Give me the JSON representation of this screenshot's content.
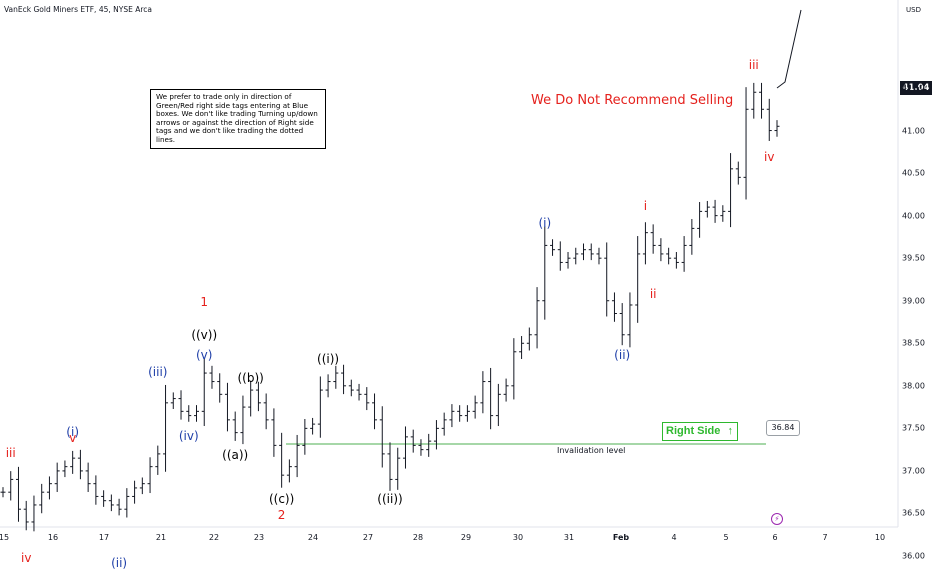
{
  "header": {
    "title": "VanEck Gold Miners ETF, 45, NYSE Arca",
    "currency": "USD"
  },
  "note": {
    "text": "We prefer to trade only in direction of Green/Red right side tags entering at Blue boxes. We don't like trading Turning up/down arrows or against the direction of Right side tags and we don't like trading the dotted lines."
  },
  "recommendation": "We Do Not Recommend Selling",
  "right_side": {
    "label": "Right Side",
    "arrow": "↑"
  },
  "invalidation": {
    "label": "Invalidation level",
    "value_label": "36.84"
  },
  "last_price": "41.04",
  "icons": {
    "bolt": "lightning-icon"
  },
  "colors": {
    "red": "#e5211d",
    "blue": "#1f3fa8",
    "green": "#2eb82e",
    "candle": "#131722"
  },
  "chart_data": {
    "type": "ohlc",
    "y_ticks": [
      "41.50",
      "41.00",
      "40.50",
      "40.00",
      "39.50",
      "39.00",
      "38.50",
      "38.00",
      "37.50",
      "37.00",
      "36.50",
      "36.00"
    ],
    "ylim": [
      35.9,
      42.05
    ],
    "x_ticks": [
      "15",
      "16",
      "17",
      "21",
      "22",
      "23",
      "24",
      "27",
      "28",
      "29",
      "30",
      "31",
      "Feb",
      "4",
      "5",
      "6",
      "7",
      "10"
    ],
    "invalidation_level": 36.84,
    "last_price": 41.04,
    "wave_labels": [
      {
        "text": "iii",
        "color": "red",
        "price": 36.95,
        "idx": 1
      },
      {
        "text": "iv",
        "color": "red",
        "price": 36.3,
        "idx": 3
      },
      {
        "text": "(i)",
        "color": "blue",
        "price": 37.2,
        "idx": 9
      },
      {
        "text": "v",
        "color": "red",
        "price": 37.25,
        "idx": 9
      },
      {
        "text": "(ii)",
        "color": "blue",
        "price": 36.1,
        "idx": 15
      },
      {
        "text": "(iii)",
        "color": "blue",
        "price": 38.0,
        "idx": 20
      },
      {
        "text": "(iv)",
        "color": "blue",
        "price": 37.55,
        "idx": 24
      },
      {
        "text": "1",
        "color": "red",
        "price": 38.45,
        "idx": 26
      },
      {
        "text": "((v))",
        "color": "black",
        "price": 38.25,
        "idx": 26
      },
      {
        "text": "(v)",
        "color": "blue",
        "price": 38.2,
        "idx": 26
      },
      {
        "text": "((a))",
        "color": "black",
        "price": 37.35,
        "idx": 30
      },
      {
        "text": "((b))",
        "color": "black",
        "price": 37.95,
        "idx": 32
      },
      {
        "text": "((c))",
        "color": "black",
        "price": 36.84,
        "idx": 36
      },
      {
        "text": "2",
        "color": "red",
        "price": 36.84,
        "idx": 36
      },
      {
        "text": "((i))",
        "color": "black",
        "price": 38.15,
        "idx": 42
      },
      {
        "text": "((ii))",
        "color": "black",
        "price": 36.84,
        "idx": 50
      },
      {
        "text": "(i)",
        "color": "blue",
        "price": 39.75,
        "idx": 70
      },
      {
        "text": "(ii)",
        "color": "blue",
        "price": 38.5,
        "idx": 80
      },
      {
        "text": "i",
        "color": "red",
        "price": 39.95,
        "idx": 83
      },
      {
        "text": "ii",
        "color": "red",
        "price": 39.2,
        "idx": 84
      },
      {
        "text": "iii",
        "color": "red",
        "price": 41.6,
        "idx": 97
      },
      {
        "text": "iv",
        "color": "red",
        "price": 40.85,
        "idx": 99
      }
    ],
    "close": [
      36.75,
      36.9,
      36.55,
      36.4,
      36.6,
      36.75,
      36.85,
      37.0,
      37.05,
      37.15,
      37.0,
      36.85,
      36.7,
      36.65,
      36.6,
      36.55,
      36.7,
      36.8,
      36.85,
      37.05,
      37.2,
      37.8,
      37.85,
      37.7,
      37.65,
      37.7,
      38.15,
      38.05,
      37.9,
      37.6,
      37.45,
      37.75,
      37.95,
      37.8,
      37.6,
      37.3,
      36.95,
      37.05,
      37.3,
      37.5,
      37.55,
      37.95,
      38.05,
      38.15,
      38.0,
      37.95,
      37.9,
      37.8,
      37.6,
      37.2,
      36.9,
      37.15,
      37.4,
      37.3,
      37.25,
      37.35,
      37.5,
      37.6,
      37.7,
      37.65,
      37.7,
      37.8,
      38.05,
      37.65,
      37.9,
      38.0,
      38.4,
      38.5,
      38.6,
      39.0,
      39.65,
      39.6,
      39.45,
      39.5,
      39.55,
      39.6,
      39.55,
      39.5,
      39.0,
      38.85,
      38.6,
      38.95,
      39.55,
      39.8,
      39.65,
      39.55,
      39.5,
      39.45,
      39.65,
      39.85,
      40.05,
      40.1,
      40.0,
      40.05,
      40.55,
      40.45,
      41.25,
      41.45,
      41.25,
      41.0,
      41.05
    ]
  }
}
